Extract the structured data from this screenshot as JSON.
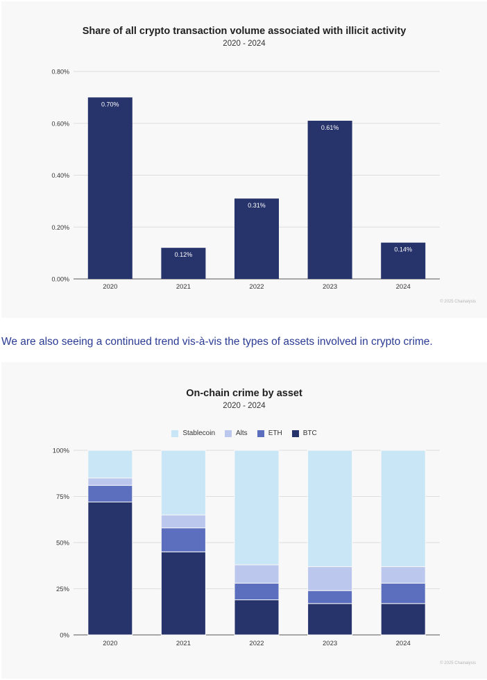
{
  "chart_data": [
    {
      "type": "bar",
      "title": "Share of all crypto transaction volume associated with illicit activity",
      "subtitle": "2020 - 2024",
      "categories": [
        "2020",
        "2021",
        "2022",
        "2023",
        "2024"
      ],
      "values": [
        0.7,
        0.12,
        0.31,
        0.61,
        0.14
      ],
      "value_labels": [
        "0.70%",
        "0.12%",
        "0.31%",
        "0.61%",
        "0.14%"
      ],
      "y_ticks": [
        0,
        0.2,
        0.4,
        0.6,
        0.8
      ],
      "y_tick_labels": [
        "0.00%",
        "0.20%",
        "0.40%",
        "0.60%",
        "0.80%"
      ],
      "ylim": [
        0,
        0.8
      ],
      "xlabel": "",
      "ylabel": "",
      "grid": true,
      "bar_color": "#27336b",
      "credit": "© 2025 Chainalysis"
    },
    {
      "type": "bar",
      "stacked": true,
      "title": "On-chain crime by asset",
      "subtitle": "2020 - 2024",
      "categories": [
        "2020",
        "2021",
        "2022",
        "2023",
        "2024"
      ],
      "series": [
        {
          "name": "BTC",
          "color": "#27336b",
          "values": [
            72,
            45,
            19,
            17,
            17
          ]
        },
        {
          "name": "ETH",
          "color": "#5b6fbe",
          "values": [
            9,
            13,
            9,
            7,
            11
          ]
        },
        {
          "name": "Alts",
          "color": "#bcc7ee",
          "values": [
            4,
            7,
            10,
            13,
            9
          ]
        },
        {
          "name": "Stablecoin",
          "color": "#c8e6f5",
          "values": [
            15,
            35,
            62,
            63,
            63
          ]
        }
      ],
      "legend_order": [
        "Stablecoin",
        "Alts",
        "ETH",
        "BTC"
      ],
      "y_ticks": [
        0,
        25,
        50,
        75,
        100
      ],
      "y_tick_labels": [
        "0%",
        "25%",
        "50%",
        "75%",
        "100%"
      ],
      "ylim": [
        0,
        100
      ],
      "xlabel": "",
      "ylabel": "",
      "grid": true,
      "legend_position": "top-center",
      "credit": "© 2025 Chainalysis"
    }
  ],
  "bridge_text": "We are also seeing a continued trend vis-à-vis the types of assets involved in crypto crime."
}
